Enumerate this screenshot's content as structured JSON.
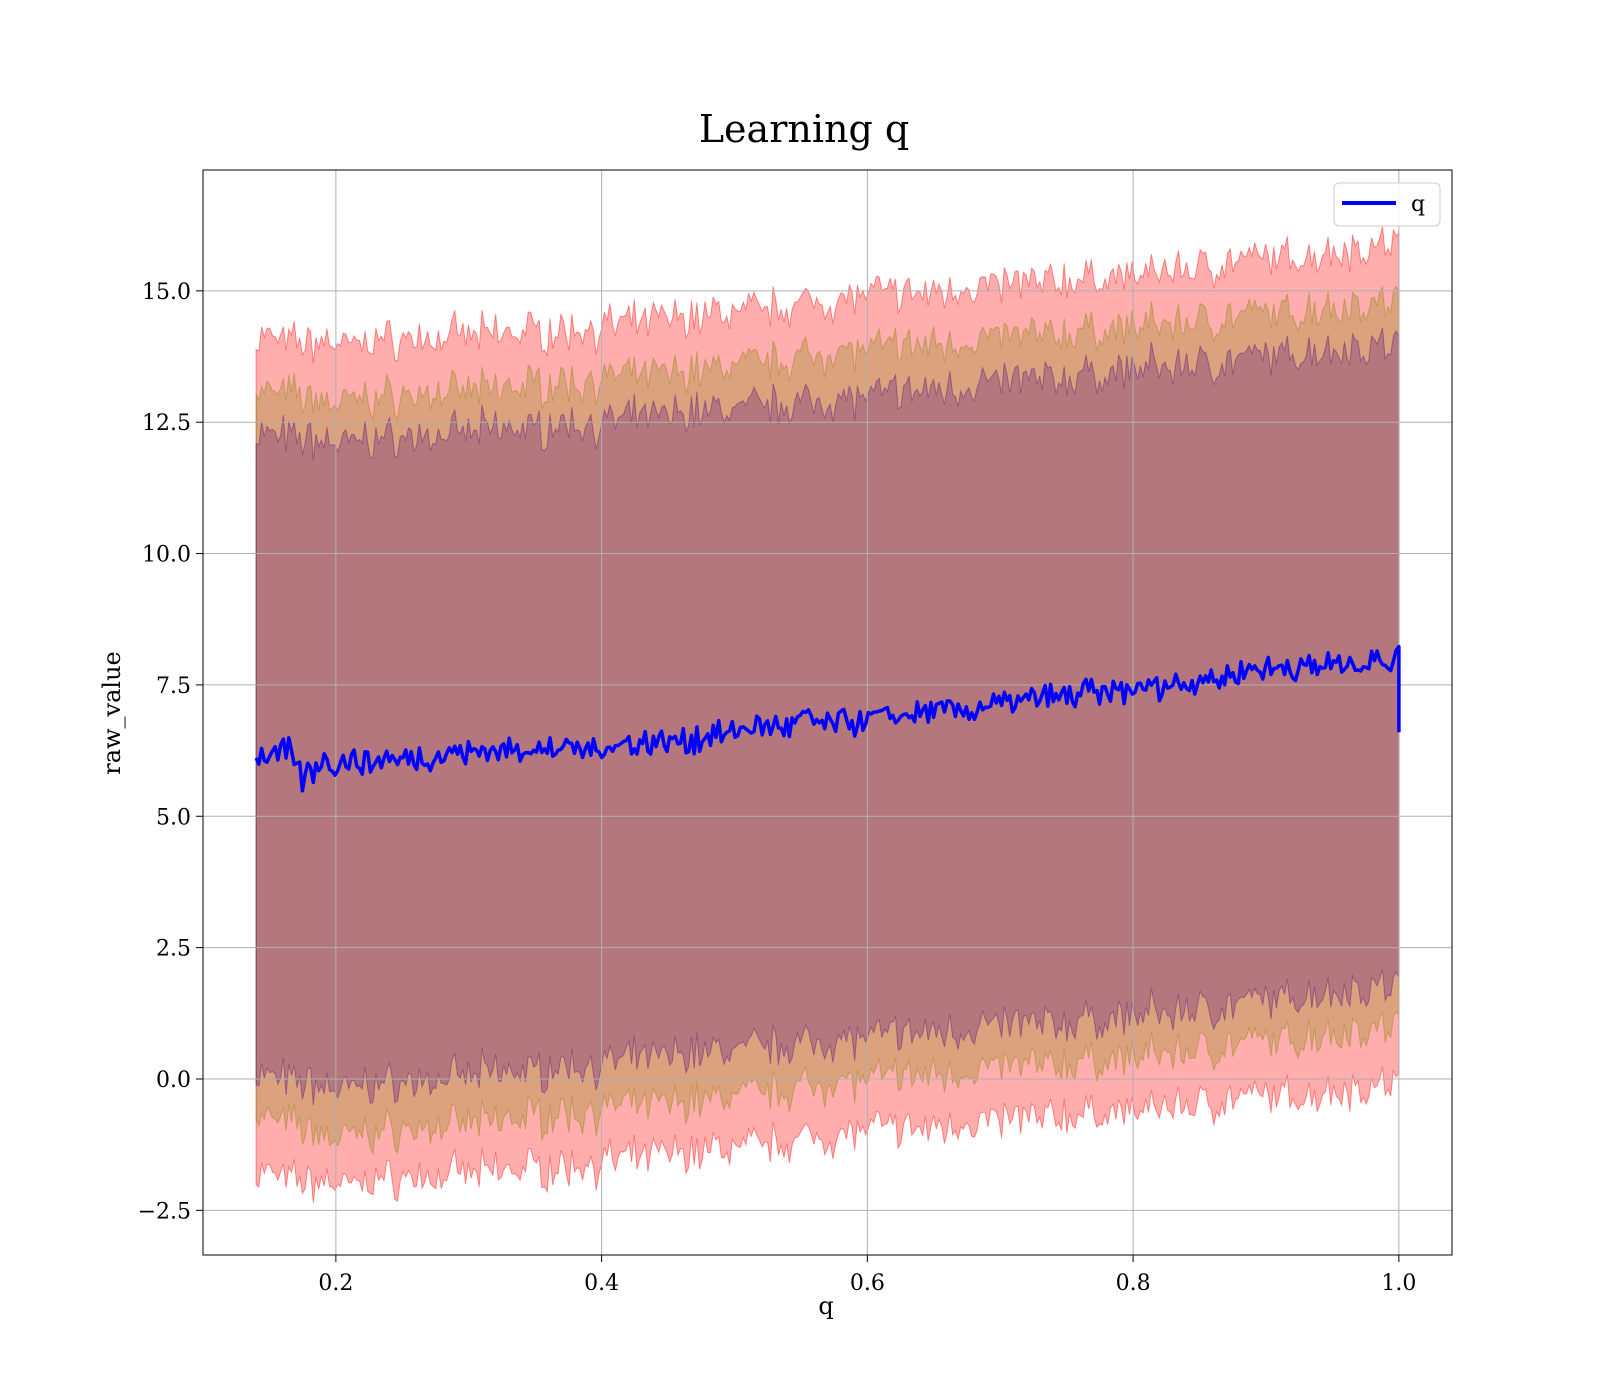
{
  "chart_data": {
    "type": "line",
    "title": "Learning q",
    "xlabel": "q",
    "ylabel": "raw_value",
    "xlim": [
      0.1,
      1.04
    ],
    "ylim": [
      -3.35,
      17.3
    ],
    "grid": true,
    "legend_position": "top-right",
    "x_ticks": [
      0.2,
      0.4,
      0.6,
      0.8,
      1.0
    ],
    "x_tick_labels": [
      "0.2",
      "0.4",
      "0.6",
      "0.8",
      "1.0"
    ],
    "y_ticks": [
      -2.5,
      0.0,
      2.5,
      5.0,
      7.5,
      10.0,
      12.5,
      15.0
    ],
    "y_tick_labels": [
      "−2.5",
      "0.0",
      "2.5",
      "5.0",
      "7.5",
      "10.0",
      "12.5",
      "15.0"
    ],
    "x_range": [
      0.14,
      1.0
    ],
    "series": [
      {
        "name": "q",
        "color": "#0000ff",
        "x": [
          0.14,
          0.15,
          0.165,
          0.175,
          0.19,
          0.2,
          0.25,
          0.3,
          0.35,
          0.4,
          0.45,
          0.5,
          0.55,
          0.6,
          0.65,
          0.7,
          0.75,
          0.8,
          0.85,
          0.9,
          0.95,
          1.0
        ],
        "y": [
          6.2,
          6.1,
          6.2,
          5.7,
          6.1,
          6.0,
          6.1,
          6.2,
          6.3,
          6.3,
          6.4,
          6.6,
          6.8,
          6.8,
          7.0,
          7.1,
          7.3,
          7.4,
          7.6,
          7.8,
          7.9,
          8.0
        ]
      }
    ],
    "bands": [
      {
        "color": "#ff0000",
        "opacity": 0.32,
        "x": [
          0.14,
          0.2,
          0.4,
          0.6,
          0.8,
          1.0
        ],
        "upper": [
          14.1,
          14.0,
          14.3,
          14.9,
          15.3,
          15.9
        ],
        "lower": [
          -1.8,
          -2.0,
          -1.6,
          -1.0,
          -0.6,
          -0.1
        ]
      },
      {
        "color": "#808000",
        "opacity": 0.28,
        "x": [
          0.14,
          0.2,
          0.4,
          0.6,
          0.8,
          1.0
        ],
        "upper": [
          13.1,
          12.9,
          13.3,
          13.9,
          14.3,
          14.8
        ],
        "lower": [
          -0.7,
          -1.1,
          -0.6,
          0.0,
          0.4,
          1.0
        ]
      },
      {
        "color": "#400080",
        "opacity": 0.26,
        "x": [
          0.14,
          0.2,
          0.4,
          0.6,
          0.8,
          1.0
        ],
        "upper": [
          12.3,
          12.1,
          12.5,
          13.0,
          13.5,
          14.0
        ],
        "lower": [
          0.1,
          -0.2,
          0.3,
          0.8,
          1.2,
          1.8
        ]
      }
    ]
  }
}
